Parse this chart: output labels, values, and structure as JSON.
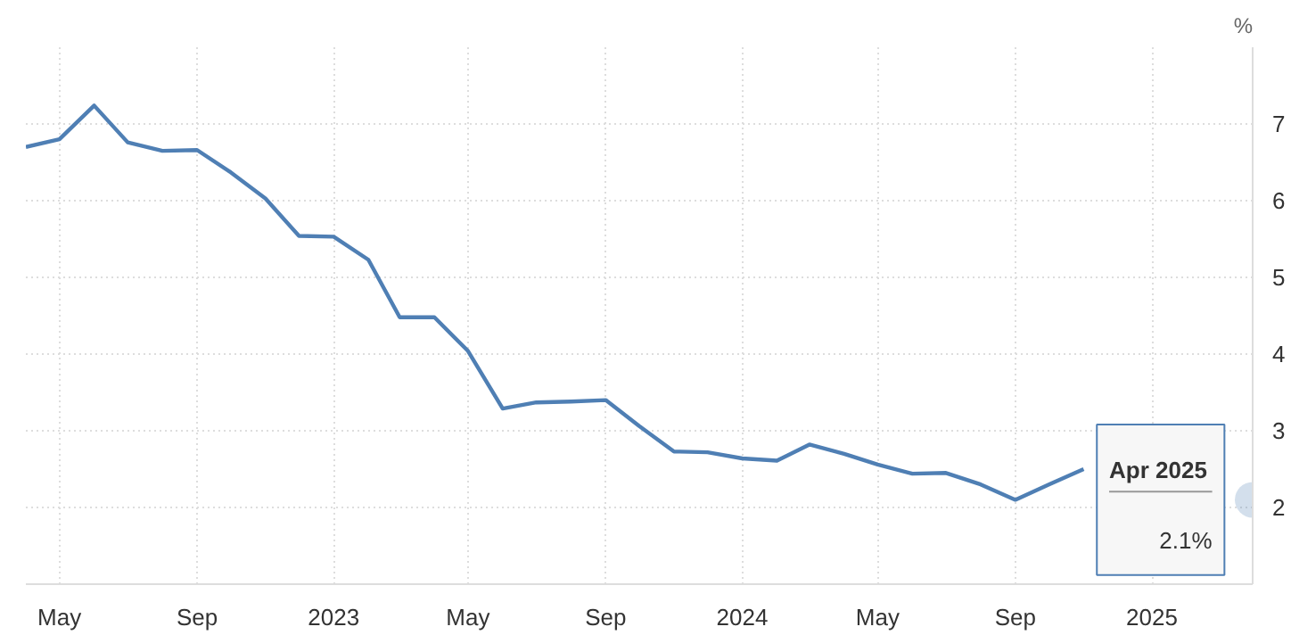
{
  "chart_data": {
    "type": "line",
    "ylabel": "%",
    "x": [
      "2022-04",
      "2022-05",
      "2022-06",
      "2022-07",
      "2022-08",
      "2022-09",
      "2022-10",
      "2022-11",
      "2022-12",
      "2023-01",
      "2023-02",
      "2023-03",
      "2023-04",
      "2023-05",
      "2023-06",
      "2023-07",
      "2023-08",
      "2023-09",
      "2023-10",
      "2023-11",
      "2023-12",
      "2024-01",
      "2024-02",
      "2024-03",
      "2024-04",
      "2024-05",
      "2024-06",
      "2024-07",
      "2024-08",
      "2024-09",
      "2024-10",
      "2024-11",
      "2024-12",
      "2025-01",
      "2025-02",
      "2025-03",
      "2025-04"
    ],
    "series": [
      {
        "color": "#4f7fb4",
        "values": [
          6.7,
          6.8,
          7.24,
          6.76,
          6.65,
          6.66,
          6.37,
          6.03,
          5.54,
          5.53,
          5.23,
          4.48,
          4.48,
          4.04,
          3.29,
          3.37,
          3.38,
          3.4,
          3.06,
          2.73,
          2.72,
          2.64,
          2.61,
          2.82,
          2.7,
          2.56,
          2.44,
          2.45,
          2.3,
          2.1,
          2.3,
          2.5,
          null,
          null,
          null,
          null,
          2.1
        ]
      }
    ],
    "xlim": [
      "2022-04",
      "2025-04"
    ],
    "xticks": [
      {
        "value": "2022-05",
        "label": "May"
      },
      {
        "value": "2022-09",
        "label": "Sep"
      },
      {
        "value": "2023-01",
        "label": "2023"
      },
      {
        "value": "2023-05",
        "label": "May"
      },
      {
        "value": "2023-09",
        "label": "Sep"
      },
      {
        "value": "2024-01",
        "label": "2024"
      },
      {
        "value": "2024-05",
        "label": "May"
      },
      {
        "value": "2024-09",
        "label": "Sep"
      },
      {
        "value": "2025-01",
        "label": "2025"
      }
    ],
    "ylim": [
      1,
      8
    ],
    "yticks": [
      2,
      3,
      4,
      5,
      6,
      7
    ],
    "grid": true,
    "marker": "none",
    "line_style": "solid",
    "annotations": [
      "Apr 2025",
      "2.1%"
    ]
  }
}
